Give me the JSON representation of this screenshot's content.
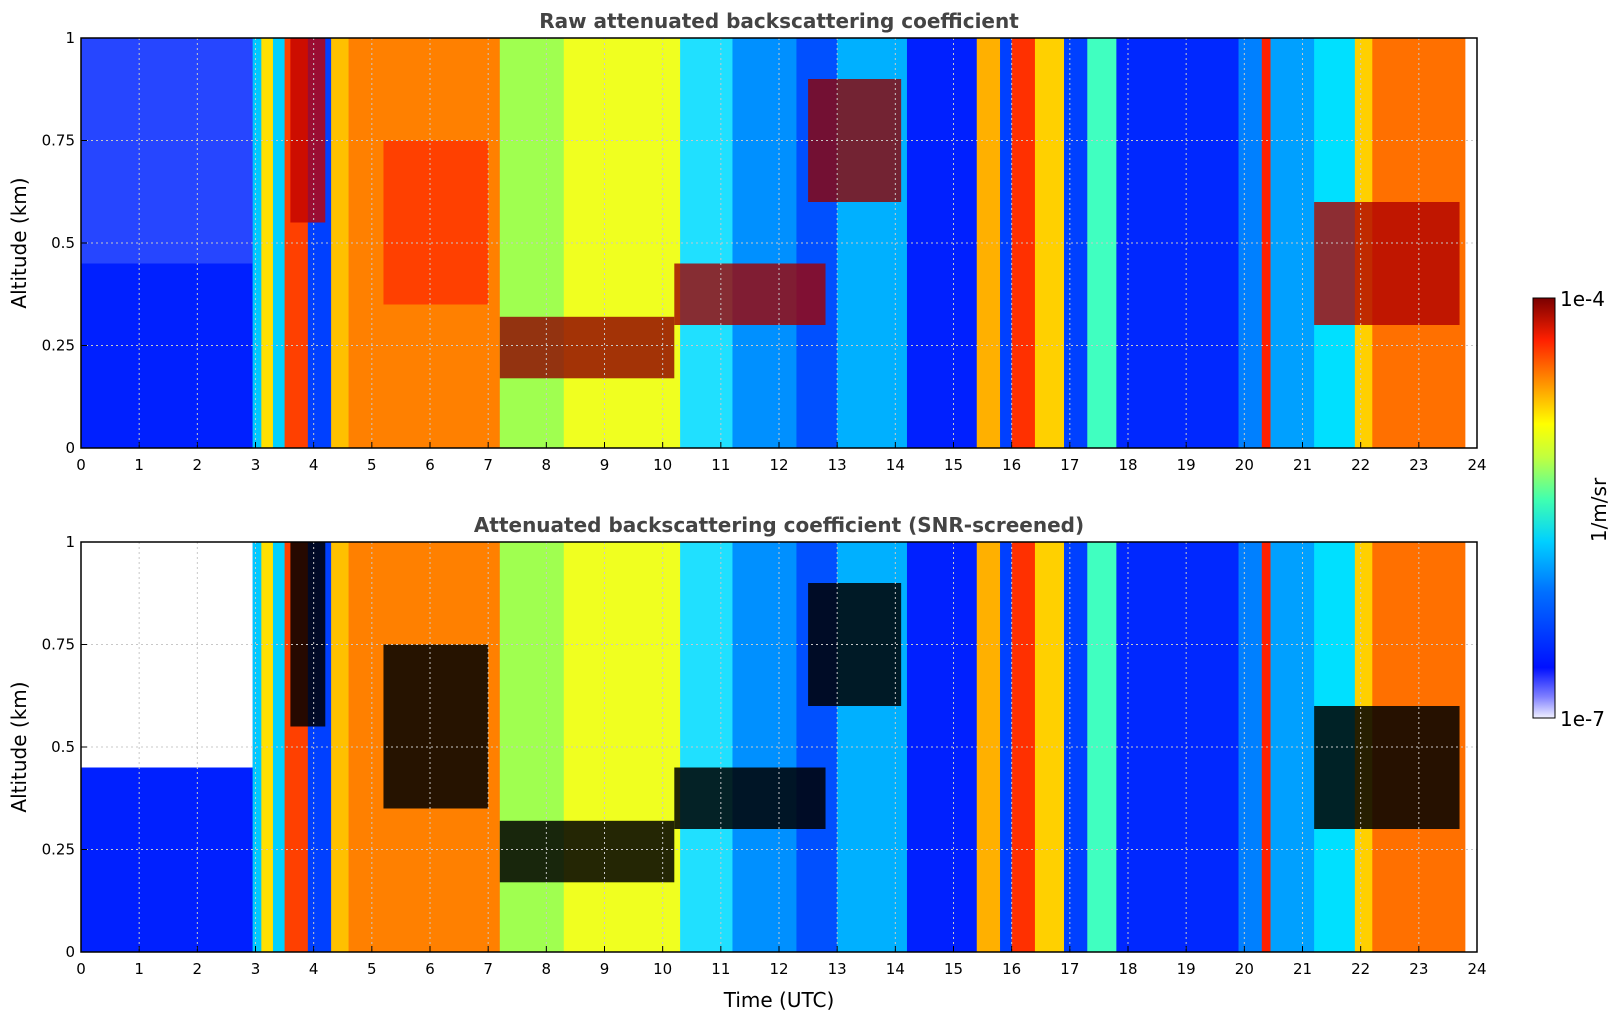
{
  "chart_data": [
    {
      "type": "heatmap",
      "title": "Raw attenuated backscattering coefficient",
      "xlabel": "",
      "ylabel": "Altitude (km)",
      "xlim": [
        0,
        24
      ],
      "ylim": [
        0,
        1
      ],
      "xticks": [
        "0",
        "1",
        "2",
        "3",
        "4",
        "5",
        "6",
        "7",
        "8",
        "9",
        "10",
        "11",
        "12",
        "13",
        "14",
        "15",
        "16",
        "17",
        "18",
        "19",
        "20",
        "21",
        "22",
        "23",
        "24"
      ],
      "yticks": [
        "0",
        "0.25",
        "0.5",
        "0.75",
        "1"
      ],
      "yticks_values": [
        0,
        0.25,
        0.5,
        0.75,
        1
      ],
      "grid": true,
      "colormap": "jet",
      "zscale": "log",
      "zrange": [
        1e-07,
        0.0001
      ]
    },
    {
      "type": "heatmap",
      "title": "Attenuated backscattering coefficient (SNR-screened)",
      "xlabel": "Time (UTC)",
      "ylabel": "Altitude (km)",
      "xlim": [
        0,
        24
      ],
      "ylim": [
        0,
        1
      ],
      "xticks": [
        "0",
        "1",
        "2",
        "3",
        "4",
        "5",
        "6",
        "7",
        "8",
        "9",
        "10",
        "11",
        "12",
        "13",
        "14",
        "15",
        "16",
        "17",
        "18",
        "19",
        "20",
        "21",
        "22",
        "23",
        "24"
      ],
      "yticks": [
        "0",
        "0.25",
        "0.5",
        "0.75",
        "1"
      ],
      "yticks_values": [
        0,
        0.25,
        0.5,
        0.75,
        1
      ],
      "grid": true,
      "colormap": "jet",
      "zscale": "log",
      "zrange": [
        1e-07,
        0.0001
      ],
      "saturated_color": "#000000"
    }
  ],
  "colorbar": {
    "label": "1/m/sr",
    "max_label": "1e-4",
    "min_label": "1e-7",
    "low_color": "#e8e8ff",
    "high_color": "#7a0000"
  },
  "colors": {
    "grid": "#c8c8c8",
    "title": "#444444"
  }
}
